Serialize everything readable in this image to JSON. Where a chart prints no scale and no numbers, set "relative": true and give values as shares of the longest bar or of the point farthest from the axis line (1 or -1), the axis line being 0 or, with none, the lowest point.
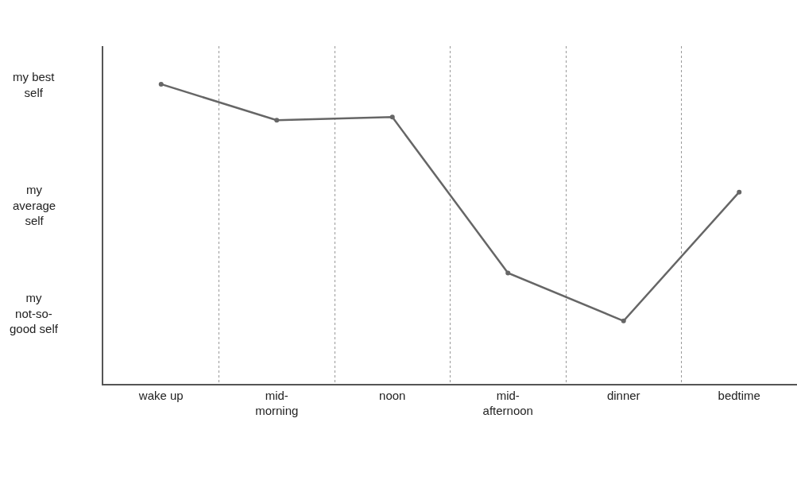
{
  "chart_data": {
    "type": "line",
    "relative": true,
    "categories": [
      "wake up",
      "mid-\nmorning",
      "noon",
      "mid-\nafternoon",
      "dinner",
      "bedtime"
    ],
    "series": [
      {
        "color": "#666666",
        "values": [
          1,
          0.88,
          0.89,
          0.37,
          0.21,
          0.64
        ]
      }
    ],
    "annotations": [
      "my best\nself",
      "my\naverage\nself",
      "my\nnot-so-\ngood self"
    ],
    "grid": "x",
    "marker": "circle",
    "line_style": "solid",
    "legend": false
  }
}
